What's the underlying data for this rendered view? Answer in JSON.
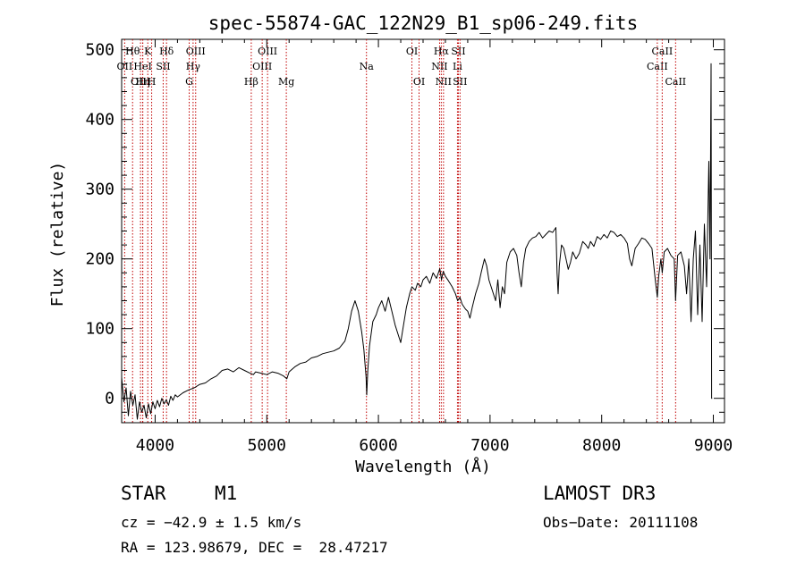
{
  "chart_data": {
    "type": "line",
    "title": "spec-55874-GAC_122N29_B1_sp06-249.fits",
    "xlabel": "Wavelength (Å)",
    "ylabel": "Flux (relative)",
    "xlim": [
      3700,
      9100
    ],
    "ylim": [
      -35,
      515
    ],
    "xticks": [
      4000,
      5000,
      6000,
      7000,
      8000,
      9000
    ],
    "yticks": [
      0,
      100,
      200,
      300,
      400,
      500
    ],
    "lines": [
      {
        "label": "OII",
        "wl": 3727,
        "row": 1
      },
      {
        "label": "Hθ",
        "wl": 3798,
        "row": 0
      },
      {
        "label": "OIII",
        "wl": 3869,
        "row": 2
      },
      {
        "label": "Hη",
        "wl": 3889,
        "row": 2
      },
      {
        "label": "HeI",
        "wl": 3889,
        "row": 1
      },
      {
        "label": "K",
        "wl": 3934,
        "row": 0
      },
      {
        "label": "H",
        "wl": 3969,
        "row": 2
      },
      {
        "label": "SII",
        "wl": 4072,
        "row": 1
      },
      {
        "label": "Hδ",
        "wl": 4102,
        "row": 0
      },
      {
        "label": "G",
        "wl": 4305,
        "row": 2
      },
      {
        "label": "Hγ",
        "wl": 4340,
        "row": 1
      },
      {
        "label": "OIII",
        "wl": 4363,
        "row": 0
      },
      {
        "label": "Hβ",
        "wl": 4861,
        "row": 2
      },
      {
        "label": "OIII",
        "wl": 4959,
        "row": 1
      },
      {
        "label": "OIII",
        "wl": 5007,
        "row": 0
      },
      {
        "label": "Mg",
        "wl": 5175,
        "row": 2
      },
      {
        "label": "Na",
        "wl": 5893,
        "row": 1
      },
      {
        "label": "OI",
        "wl": 6300,
        "row": 0
      },
      {
        "label": "OI",
        "wl": 6364,
        "row": 2
      },
      {
        "label": "NII",
        "wl": 6548,
        "row": 1
      },
      {
        "label": "Hα",
        "wl": 6563,
        "row": 0
      },
      {
        "label": "NII",
        "wl": 6583,
        "row": 2
      },
      {
        "label": "SII",
        "wl": 6716,
        "row": 0
      },
      {
        "label": "Li",
        "wl": 6708,
        "row": 1
      },
      {
        "label": "SII",
        "wl": 6731,
        "row": 2
      },
      {
        "label": "CaII",
        "wl": 8498,
        "row": 1
      },
      {
        "label": "CaII",
        "wl": 8542,
        "row": 0
      },
      {
        "label": "CaII",
        "wl": 8662,
        "row": 2
      }
    ],
    "series": [
      {
        "name": "flux",
        "points": [
          [
            3700,
            30
          ],
          [
            3720,
            -5
          ],
          [
            3740,
            15
          ],
          [
            3760,
            -25
          ],
          [
            3780,
            10
          ],
          [
            3800,
            -10
          ],
          [
            3820,
            5
          ],
          [
            3840,
            -30
          ],
          [
            3860,
            -5
          ],
          [
            3880,
            -20
          ],
          [
            3900,
            -10
          ],
          [
            3920,
            -28
          ],
          [
            3940,
            -8
          ],
          [
            3960,
            -22
          ],
          [
            3980,
            -5
          ],
          [
            4000,
            -15
          ],
          [
            4020,
            -3
          ],
          [
            4040,
            -12
          ],
          [
            4060,
            0
          ],
          [
            4080,
            -8
          ],
          [
            4100,
            -2
          ],
          [
            4120,
            -10
          ],
          [
            4140,
            3
          ],
          [
            4160,
            -3
          ],
          [
            4180,
            5
          ],
          [
            4200,
            2
          ],
          [
            4250,
            8
          ],
          [
            4300,
            12
          ],
          [
            4350,
            15
          ],
          [
            4400,
            20
          ],
          [
            4450,
            22
          ],
          [
            4500,
            28
          ],
          [
            4550,
            32
          ],
          [
            4600,
            40
          ],
          [
            4650,
            42
          ],
          [
            4700,
            38
          ],
          [
            4750,
            44
          ],
          [
            4800,
            40
          ],
          [
            4850,
            36
          ],
          [
            4880,
            34
          ],
          [
            4900,
            38
          ],
          [
            4950,
            36
          ],
          [
            5000,
            34
          ],
          [
            5050,
            38
          ],
          [
            5100,
            36
          ],
          [
            5150,
            32
          ],
          [
            5180,
            28
          ],
          [
            5200,
            38
          ],
          [
            5250,
            45
          ],
          [
            5300,
            50
          ],
          [
            5350,
            52
          ],
          [
            5400,
            58
          ],
          [
            5450,
            60
          ],
          [
            5500,
            64
          ],
          [
            5550,
            66
          ],
          [
            5600,
            68
          ],
          [
            5650,
            72
          ],
          [
            5700,
            82
          ],
          [
            5730,
            100
          ],
          [
            5760,
            125
          ],
          [
            5790,
            140
          ],
          [
            5820,
            125
          ],
          [
            5850,
            95
          ],
          [
            5870,
            70
          ],
          [
            5890,
            30
          ],
          [
            5895,
            5
          ],
          [
            5905,
            40
          ],
          [
            5920,
            75
          ],
          [
            5950,
            110
          ],
          [
            5980,
            120
          ],
          [
            6000,
            130
          ],
          [
            6030,
            140
          ],
          [
            6060,
            125
          ],
          [
            6090,
            145
          ],
          [
            6120,
            125
          ],
          [
            6150,
            105
          ],
          [
            6180,
            90
          ],
          [
            6200,
            80
          ],
          [
            6220,
            100
          ],
          [
            6250,
            130
          ],
          [
            6280,
            150
          ],
          [
            6300,
            160
          ],
          [
            6330,
            155
          ],
          [
            6350,
            165
          ],
          [
            6380,
            160
          ],
          [
            6400,
            170
          ],
          [
            6430,
            175
          ],
          [
            6460,
            165
          ],
          [
            6490,
            180
          ],
          [
            6520,
            172
          ],
          [
            6550,
            186
          ],
          [
            6565,
            170
          ],
          [
            6580,
            182
          ],
          [
            6600,
            175
          ],
          [
            6630,
            168
          ],
          [
            6660,
            160
          ],
          [
            6690,
            150
          ],
          [
            6710,
            140
          ],
          [
            6730,
            145
          ],
          [
            6750,
            135
          ],
          [
            6780,
            128
          ],
          [
            6800,
            125
          ],
          [
            6820,
            115
          ],
          [
            6840,
            130
          ],
          [
            6870,
            150
          ],
          [
            6900,
            165
          ],
          [
            6920,
            180
          ],
          [
            6950,
            200
          ],
          [
            6970,
            190
          ],
          [
            6990,
            170
          ],
          [
            7010,
            160
          ],
          [
            7030,
            150
          ],
          [
            7050,
            140
          ],
          [
            7070,
            170
          ],
          [
            7090,
            130
          ],
          [
            7110,
            160
          ],
          [
            7130,
            150
          ],
          [
            7150,
            195
          ],
          [
            7180,
            210
          ],
          [
            7210,
            215
          ],
          [
            7240,
            205
          ],
          [
            7260,
            180
          ],
          [
            7280,
            160
          ],
          [
            7300,
            195
          ],
          [
            7320,
            215
          ],
          [
            7350,
            225
          ],
          [
            7380,
            230
          ],
          [
            7410,
            232
          ],
          [
            7440,
            238
          ],
          [
            7470,
            230
          ],
          [
            7500,
            235
          ],
          [
            7530,
            240
          ],
          [
            7560,
            238
          ],
          [
            7590,
            245
          ],
          [
            7600,
            180
          ],
          [
            7610,
            150
          ],
          [
            7620,
            190
          ],
          [
            7640,
            220
          ],
          [
            7660,
            215
          ],
          [
            7680,
            200
          ],
          [
            7700,
            185
          ],
          [
            7720,
            195
          ],
          [
            7740,
            210
          ],
          [
            7770,
            200
          ],
          [
            7800,
            208
          ],
          [
            7830,
            225
          ],
          [
            7860,
            220
          ],
          [
            7880,
            215
          ],
          [
            7900,
            225
          ],
          [
            7930,
            218
          ],
          [
            7960,
            232
          ],
          [
            7990,
            228
          ],
          [
            8020,
            235
          ],
          [
            8050,
            230
          ],
          [
            8080,
            240
          ],
          [
            8110,
            238
          ],
          [
            8140,
            232
          ],
          [
            8170,
            235
          ],
          [
            8200,
            230
          ],
          [
            8230,
            222
          ],
          [
            8250,
            200
          ],
          [
            8270,
            190
          ],
          [
            8300,
            215
          ],
          [
            8330,
            222
          ],
          [
            8360,
            230
          ],
          [
            8390,
            228
          ],
          [
            8420,
            222
          ],
          [
            8450,
            215
          ],
          [
            8480,
            170
          ],
          [
            8498,
            145
          ],
          [
            8510,
            175
          ],
          [
            8530,
            200
          ],
          [
            8542,
            180
          ],
          [
            8560,
            210
          ],
          [
            8590,
            215
          ],
          [
            8620,
            205
          ],
          [
            8650,
            200
          ],
          [
            8662,
            140
          ],
          [
            8680,
            205
          ],
          [
            8710,
            210
          ],
          [
            8740,
            190
          ],
          [
            8760,
            150
          ],
          [
            8780,
            200
          ],
          [
            8800,
            110
          ],
          [
            8820,
            200
          ],
          [
            8840,
            240
          ],
          [
            8860,
            120
          ],
          [
            8880,
            220
          ],
          [
            8900,
            110
          ],
          [
            8920,
            250
          ],
          [
            8940,
            160
          ],
          [
            8960,
            340
          ],
          [
            8970,
            200
          ],
          [
            8980,
            480
          ],
          [
            8985,
            0
          ],
          [
            8990,
            0
          ]
        ]
      }
    ]
  },
  "footer": {
    "object_class": "STAR",
    "subclass": "M1",
    "survey": "LAMOST DR3",
    "redshift": "cz = −42.9 ± 1.5 km/s",
    "obs_date": "Obs−Date: 20111108",
    "coords": "RA = 123.98679, DEC =  28.47217"
  }
}
